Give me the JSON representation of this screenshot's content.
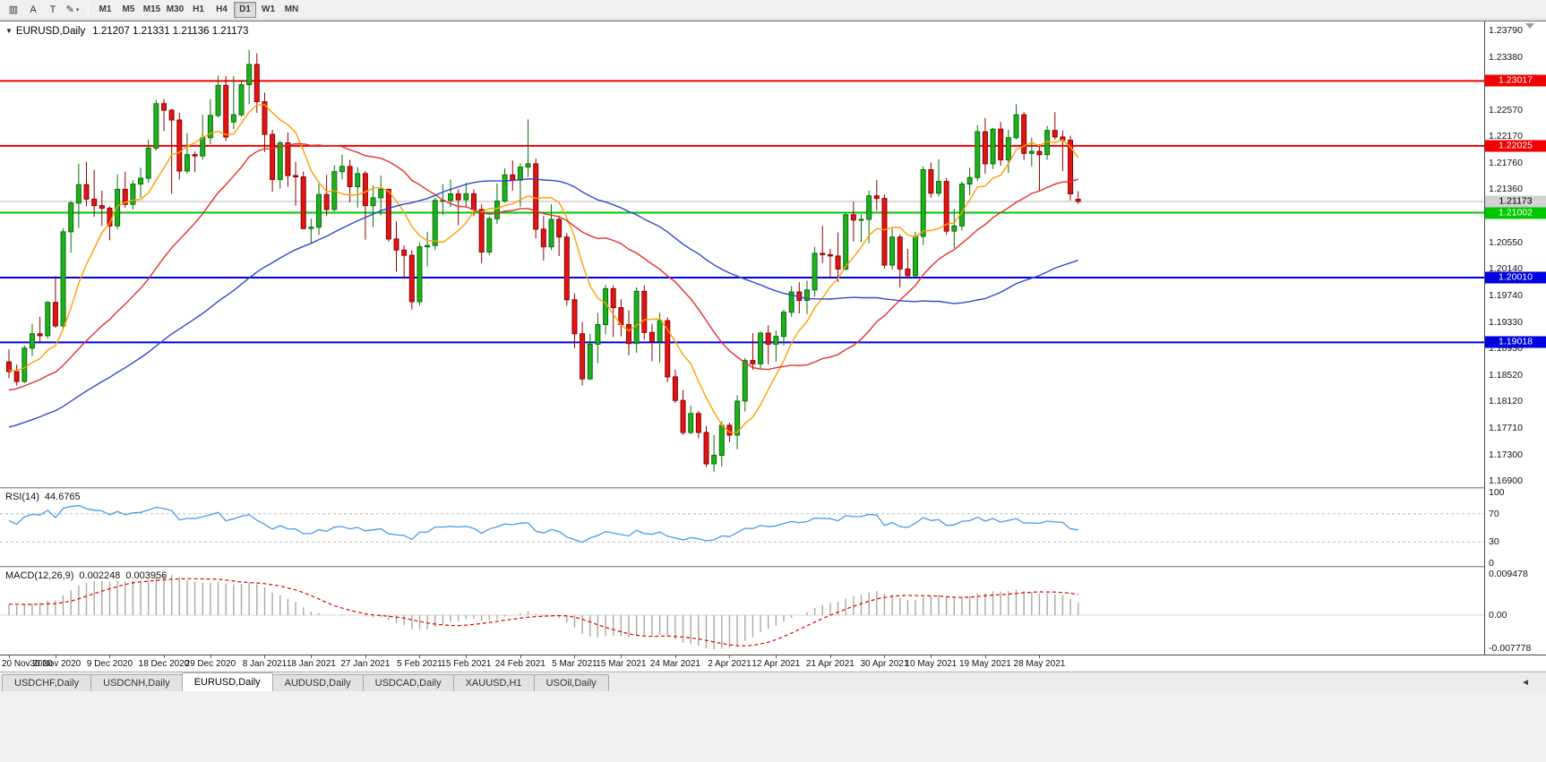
{
  "toolbar": {
    "icons": [
      {
        "name": "chart-window-icon",
        "glyph": "▥"
      },
      {
        "name": "annotation-a-icon",
        "glyph": "A"
      },
      {
        "name": "text-tool-icon",
        "glyph": "T"
      },
      {
        "name": "drawing-tool-icon",
        "glyph": "✎"
      }
    ],
    "dropdown_glyph": "▾",
    "timeframes": [
      "M1",
      "M5",
      "M15",
      "M30",
      "H1",
      "H4",
      "D1",
      "W1",
      "MN"
    ],
    "active_timeframe": "D1"
  },
  "chart": {
    "collapse_arrow": "▼",
    "symbol_period": "EURUSD,Daily",
    "ohlc_text": "1.21207 1.21331 1.21136 1.21173"
  },
  "chart_data": {
    "type": "candlestick",
    "symbol": "EURUSD",
    "period": "Daily",
    "ohlc_current": {
      "open": 1.21207,
      "high": 1.21331,
      "low": 1.21136,
      "close": 1.21173
    },
    "up_color": "#1eb01e",
    "up_border": "#0a6e0a",
    "down_color": "#e01515",
    "down_border": "#8f0000",
    "price_axis_labels": [
      1.2379,
      1.2338,
      1.2298,
      1.2257,
      1.2217,
      1.2176,
      1.2136,
      1.2095,
      1.2055,
      1.2014,
      1.1974,
      1.1933,
      1.1893,
      1.1852,
      1.1812,
      1.1771,
      1.173,
      1.169
    ],
    "levels": [
      {
        "price": 1.23017,
        "color": "#f00000",
        "width": 2
      },
      {
        "price": 1.22025,
        "color": "#f00000",
        "width": 2
      },
      {
        "price": 1.21002,
        "color": "#00c800",
        "width": 2
      },
      {
        "price": 1.2001,
        "color": "#0000e0",
        "width": 2
      },
      {
        "price": 1.19018,
        "color": "#0000e0",
        "width": 2
      }
    ],
    "current_price": {
      "value": 1.21173,
      "line_color": "#b4b4b4",
      "badge_bg": "#d2d2d2",
      "badge_text": "#000000"
    },
    "moving_averages": [
      {
        "name": "fast",
        "period": 8,
        "color": "#ff9e00"
      },
      {
        "name": "medium",
        "period": 25,
        "color": "#e03030"
      },
      {
        "name": "slow",
        "period": 55,
        "color": "#3448cc"
      }
    ],
    "x_ticks": [
      {
        "label": "20 Nov 2020",
        "index": 0
      },
      {
        "label": "30 Nov 2020",
        "index": 6
      },
      {
        "label": "9 Dec 2020",
        "index": 13
      },
      {
        "label": "18 Dec 2020",
        "index": 20
      },
      {
        "label": "29 Dec 2020",
        "index": 26
      },
      {
        "label": "8 Jan 2021",
        "index": 33
      },
      {
        "label": "18 Jan 2021",
        "index": 39
      },
      {
        "label": "27 Jan 2021",
        "index": 46
      },
      {
        "label": "5 Feb 2021",
        "index": 53
      },
      {
        "label": "15 Feb 2021",
        "index": 59
      },
      {
        "label": "24 Feb 2021",
        "index": 66
      },
      {
        "label": "5 Mar 2021",
        "index": 73
      },
      {
        "label": "15 Mar 2021",
        "index": 79
      },
      {
        "label": "24 Mar 2021",
        "index": 86
      },
      {
        "label": "2 Apr 2021",
        "index": 93
      },
      {
        "label": "12 Apr 2021",
        "index": 99
      },
      {
        "label": "21 Apr 2021",
        "index": 106
      },
      {
        "label": "30 Apr 2021",
        "index": 113
      },
      {
        "label": "10 May 2021",
        "index": 119
      },
      {
        "label": "19 May 2021",
        "index": 126
      },
      {
        "label": "28 May 2021",
        "index": 133
      }
    ],
    "candles": [
      [
        1.1872,
        1.1891,
        1.1847,
        1.1857
      ],
      [
        1.1857,
        1.1868,
        1.1836,
        1.1842
      ],
      [
        1.1842,
        1.1897,
        1.184,
        1.1893
      ],
      [
        1.1893,
        1.193,
        1.1881,
        1.1915
      ],
      [
        1.1915,
        1.1941,
        1.1902,
        1.1912
      ],
      [
        1.1912,
        1.1965,
        1.1908,
        1.1963
      ],
      [
        1.1963,
        1.2003,
        1.1924,
        1.1927
      ],
      [
        1.1927,
        1.2076,
        1.1922,
        1.2071
      ],
      [
        1.2071,
        1.2118,
        1.2039,
        1.2115
      ],
      [
        1.2115,
        1.2175,
        1.2077,
        1.2143
      ],
      [
        1.2143,
        1.2178,
        1.211,
        1.2121
      ],
      [
        1.2121,
        1.2166,
        1.2094,
        1.2111
      ],
      [
        1.2111,
        1.2134,
        1.208,
        1.2107
      ],
      [
        1.2107,
        1.211,
        1.2058,
        1.208
      ],
      [
        1.208,
        1.2159,
        1.2075,
        1.2136
      ],
      [
        1.2136,
        1.2163,
        1.2108,
        1.2113
      ],
      [
        1.2113,
        1.215,
        1.2105,
        1.2144
      ],
      [
        1.2144,
        1.2169,
        1.2123,
        1.2153
      ],
      [
        1.2153,
        1.2212,
        1.2146,
        1.2199
      ],
      [
        1.2199,
        1.2273,
        1.2195,
        1.2267
      ],
      [
        1.2267,
        1.2274,
        1.2225,
        1.2257
      ],
      [
        1.2257,
        1.2259,
        1.2129,
        1.2242
      ],
      [
        1.2242,
        1.2253,
        1.2151,
        1.2164
      ],
      [
        1.2164,
        1.2222,
        1.216,
        1.2189
      ],
      [
        1.2189,
        1.2194,
        1.2162,
        1.2187
      ],
      [
        1.2187,
        1.225,
        1.2181,
        1.2215
      ],
      [
        1.2215,
        1.2274,
        1.2205,
        1.2249
      ],
      [
        1.2249,
        1.231,
        1.2246,
        1.2295
      ],
      [
        1.2295,
        1.2309,
        1.221,
        1.2216
      ],
      [
        1.2239,
        1.2309,
        1.2228,
        1.225
      ],
      [
        1.225,
        1.2303,
        1.2247,
        1.2296
      ],
      [
        1.2296,
        1.2349,
        1.2266,
        1.2327
      ],
      [
        1.2327,
        1.2344,
        1.2253,
        1.227
      ],
      [
        1.227,
        1.2284,
        1.2193,
        1.222
      ],
      [
        1.222,
        1.2227,
        1.2132,
        1.2151
      ],
      [
        1.2151,
        1.221,
        1.2137,
        1.2207
      ],
      [
        1.2207,
        1.2223,
        1.214,
        1.2157
      ],
      [
        1.2157,
        1.2178,
        1.2111,
        1.2155
      ],
      [
        1.2155,
        1.2163,
        1.2075,
        1.2076
      ],
      [
        1.2076,
        1.2091,
        1.2054,
        1.2078
      ],
      [
        1.2078,
        1.2145,
        1.2066,
        1.2128
      ],
      [
        1.2128,
        1.2158,
        1.2095,
        1.2105
      ],
      [
        1.2105,
        1.2173,
        1.2102,
        1.2163
      ],
      [
        1.2163,
        1.2189,
        1.2151,
        1.2171
      ],
      [
        1.2171,
        1.2181,
        1.2116,
        1.214
      ],
      [
        1.214,
        1.217,
        1.2108,
        1.216
      ],
      [
        1.216,
        1.2164,
        1.2059,
        1.2111
      ],
      [
        1.2111,
        1.2142,
        1.2078,
        1.2123
      ],
      [
        1.2123,
        1.2157,
        1.2096,
        1.2136
      ],
      [
        1.2136,
        1.2136,
        1.2056,
        1.206
      ],
      [
        1.206,
        1.2087,
        1.201,
        1.2043
      ],
      [
        1.2043,
        1.205,
        1.1999,
        1.2035
      ],
      [
        1.2035,
        1.2043,
        1.1952,
        1.1964
      ],
      [
        1.1964,
        1.2055,
        1.1958,
        1.2048
      ],
      [
        1.2048,
        1.2071,
        1.2018,
        1.205
      ],
      [
        1.205,
        1.2123,
        1.2043,
        1.2119
      ],
      [
        1.2119,
        1.2144,
        1.2097,
        1.2119
      ],
      [
        1.2119,
        1.2151,
        1.2109,
        1.2129
      ],
      [
        1.2129,
        1.2136,
        1.2081,
        1.212
      ],
      [
        1.212,
        1.2146,
        1.211,
        1.2129
      ],
      [
        1.2129,
        1.2136,
        1.2095,
        1.2105
      ],
      [
        1.2105,
        1.2113,
        1.2023,
        1.204
      ],
      [
        1.204,
        1.2095,
        1.2035,
        1.2091
      ],
      [
        1.2091,
        1.2145,
        1.2083,
        1.2118
      ],
      [
        1.2118,
        1.2168,
        1.2116,
        1.2158
      ],
      [
        1.2158,
        1.218,
        1.2134,
        1.215
      ],
      [
        1.215,
        1.2176,
        1.2109,
        1.217
      ],
      [
        1.217,
        1.2243,
        1.2155,
        1.2175
      ],
      [
        1.2175,
        1.2183,
        1.2061,
        1.2075
      ],
      [
        1.2075,
        1.2095,
        1.2027,
        1.2048
      ],
      [
        1.2048,
        1.2113,
        1.2043,
        1.209
      ],
      [
        1.209,
        1.2094,
        1.2034,
        1.2063
      ],
      [
        1.2063,
        1.2069,
        1.1958,
        1.1967
      ],
      [
        1.1967,
        1.1977,
        1.1893,
        1.1915
      ],
      [
        1.1915,
        1.1933,
        1.1836,
        1.1846
      ],
      [
        1.1846,
        1.1915,
        1.1844,
        1.1899
      ],
      [
        1.1899,
        1.1947,
        1.187,
        1.1929
      ],
      [
        1.1929,
        1.199,
        1.1914,
        1.1984
      ],
      [
        1.1984,
        1.1989,
        1.191,
        1.1955
      ],
      [
        1.1955,
        1.1968,
        1.1911,
        1.1929
      ],
      [
        1.1929,
        1.1951,
        1.1882,
        1.19
      ],
      [
        1.19,
        1.1986,
        1.1886,
        1.198
      ],
      [
        1.198,
        1.1989,
        1.1906,
        1.1917
      ],
      [
        1.1917,
        1.193,
        1.1873,
        1.1903
      ],
      [
        1.1903,
        1.1947,
        1.1871,
        1.1935
      ],
      [
        1.1935,
        1.194,
        1.1841,
        1.1849
      ],
      [
        1.1849,
        1.186,
        1.1809,
        1.1813
      ],
      [
        1.1813,
        1.1829,
        1.176,
        1.1764
      ],
      [
        1.1764,
        1.1805,
        1.1761,
        1.1793
      ],
      [
        1.1793,
        1.1797,
        1.1755,
        1.1764
      ],
      [
        1.1764,
        1.1774,
        1.1711,
        1.1716
      ],
      [
        1.1716,
        1.176,
        1.1704,
        1.1729
      ],
      [
        1.1729,
        1.1781,
        1.1712,
        1.1775
      ],
      [
        1.1775,
        1.1779,
        1.1749,
        1.176
      ],
      [
        1.176,
        1.1821,
        1.1738,
        1.1812
      ],
      [
        1.1812,
        1.1878,
        1.1796,
        1.1874
      ],
      [
        1.1874,
        1.1916,
        1.186,
        1.1869
      ],
      [
        1.1869,
        1.1919,
        1.1861,
        1.1916
      ],
      [
        1.1916,
        1.1928,
        1.1868,
        1.1899
      ],
      [
        1.1899,
        1.192,
        1.1872,
        1.1911
      ],
      [
        1.1911,
        1.1952,
        1.1897,
        1.1948
      ],
      [
        1.1948,
        1.1988,
        1.1941,
        1.1979
      ],
      [
        1.1979,
        1.1994,
        1.1946,
        1.1966
      ],
      [
        1.1966,
        1.1996,
        1.1945,
        1.1982
      ],
      [
        1.1982,
        1.2048,
        1.1972,
        1.2038
      ],
      [
        1.2038,
        1.208,
        1.2023,
        1.2036
      ],
      [
        1.2036,
        1.2045,
        1.2001,
        1.2034
      ],
      [
        1.2034,
        1.207,
        1.1994,
        1.2014
      ],
      [
        1.2014,
        1.21,
        1.2012,
        1.2097
      ],
      [
        1.2097,
        1.2117,
        1.2056,
        1.2089
      ],
      [
        1.2089,
        1.2098,
        1.2055,
        1.209
      ],
      [
        1.209,
        1.2134,
        1.2053,
        1.2126
      ],
      [
        1.2126,
        1.215,
        1.2103,
        1.2122
      ],
      [
        1.2122,
        1.2128,
        1.2015,
        1.202
      ],
      [
        1.202,
        1.2076,
        1.2013,
        1.2063
      ],
      [
        1.2063,
        1.2067,
        1.1986,
        1.2014
      ],
      [
        1.2014,
        1.2045,
        1.1999,
        1.2004
      ],
      [
        1.2004,
        1.2071,
        1.2002,
        1.2064
      ],
      [
        1.2064,
        1.2171,
        1.2051,
        1.2166
      ],
      [
        1.2166,
        1.2177,
        1.2123,
        1.213
      ],
      [
        1.213,
        1.2182,
        1.2125,
        1.2148
      ],
      [
        1.2148,
        1.2153,
        1.2066,
        1.2072
      ],
      [
        1.2072,
        1.2106,
        1.2046,
        1.208
      ],
      [
        1.208,
        1.2148,
        1.2073,
        1.2144
      ],
      [
        1.2144,
        1.2169,
        1.2127,
        1.2154
      ],
      [
        1.2154,
        1.2234,
        1.2149,
        1.2224
      ],
      [
        1.2224,
        1.2245,
        1.216,
        1.2175
      ],
      [
        1.2175,
        1.223,
        1.2167,
        1.2228
      ],
      [
        1.2228,
        1.2239,
        1.2172,
        1.2181
      ],
      [
        1.2181,
        1.2227,
        1.2161,
        1.2215
      ],
      [
        1.2215,
        1.2266,
        1.2212,
        1.225
      ],
      [
        1.225,
        1.2254,
        1.2181,
        1.2191
      ],
      [
        1.2191,
        1.2215,
        1.2171,
        1.2194
      ],
      [
        1.2194,
        1.2205,
        1.2133,
        1.2189
      ],
      [
        1.2189,
        1.2233,
        1.2181,
        1.2226
      ],
      [
        1.2226,
        1.2254,
        1.2212,
        1.2216
      ],
      [
        1.2216,
        1.2226,
        1.2164,
        1.2211
      ],
      [
        1.2211,
        1.2218,
        1.2119,
        1.2129
      ],
      [
        1.21207,
        1.21331,
        1.21136,
        1.21173
      ]
    ]
  },
  "rsi": {
    "name": "RSI(14)",
    "value": "44.6765",
    "period": 14,
    "line_color": "#4a9be8",
    "axis_labels": [
      100,
      70,
      30,
      0
    ],
    "levels": [
      70,
      30
    ]
  },
  "macd": {
    "name": "MACD(12,26,9)",
    "value_main": "0.002248",
    "value_signal": "0.003956",
    "fast": 12,
    "slow": 26,
    "signal": 9,
    "axis_labels": [
      "0.009478",
      "0.00",
      "-0.007778"
    ],
    "histogram_color": "#a8a8a8",
    "signal_color": "#dd0000"
  },
  "tabs": {
    "items": [
      "USDCHF,Daily",
      "USDCNH,Daily",
      "EURUSD,Daily",
      "AUDUSD,Daily",
      "USDCAD,Daily",
      "XAUUSD,H1",
      "USOil,Daily"
    ],
    "active": "EURUSD,Daily",
    "scroll_left_glyph": "◄"
  }
}
